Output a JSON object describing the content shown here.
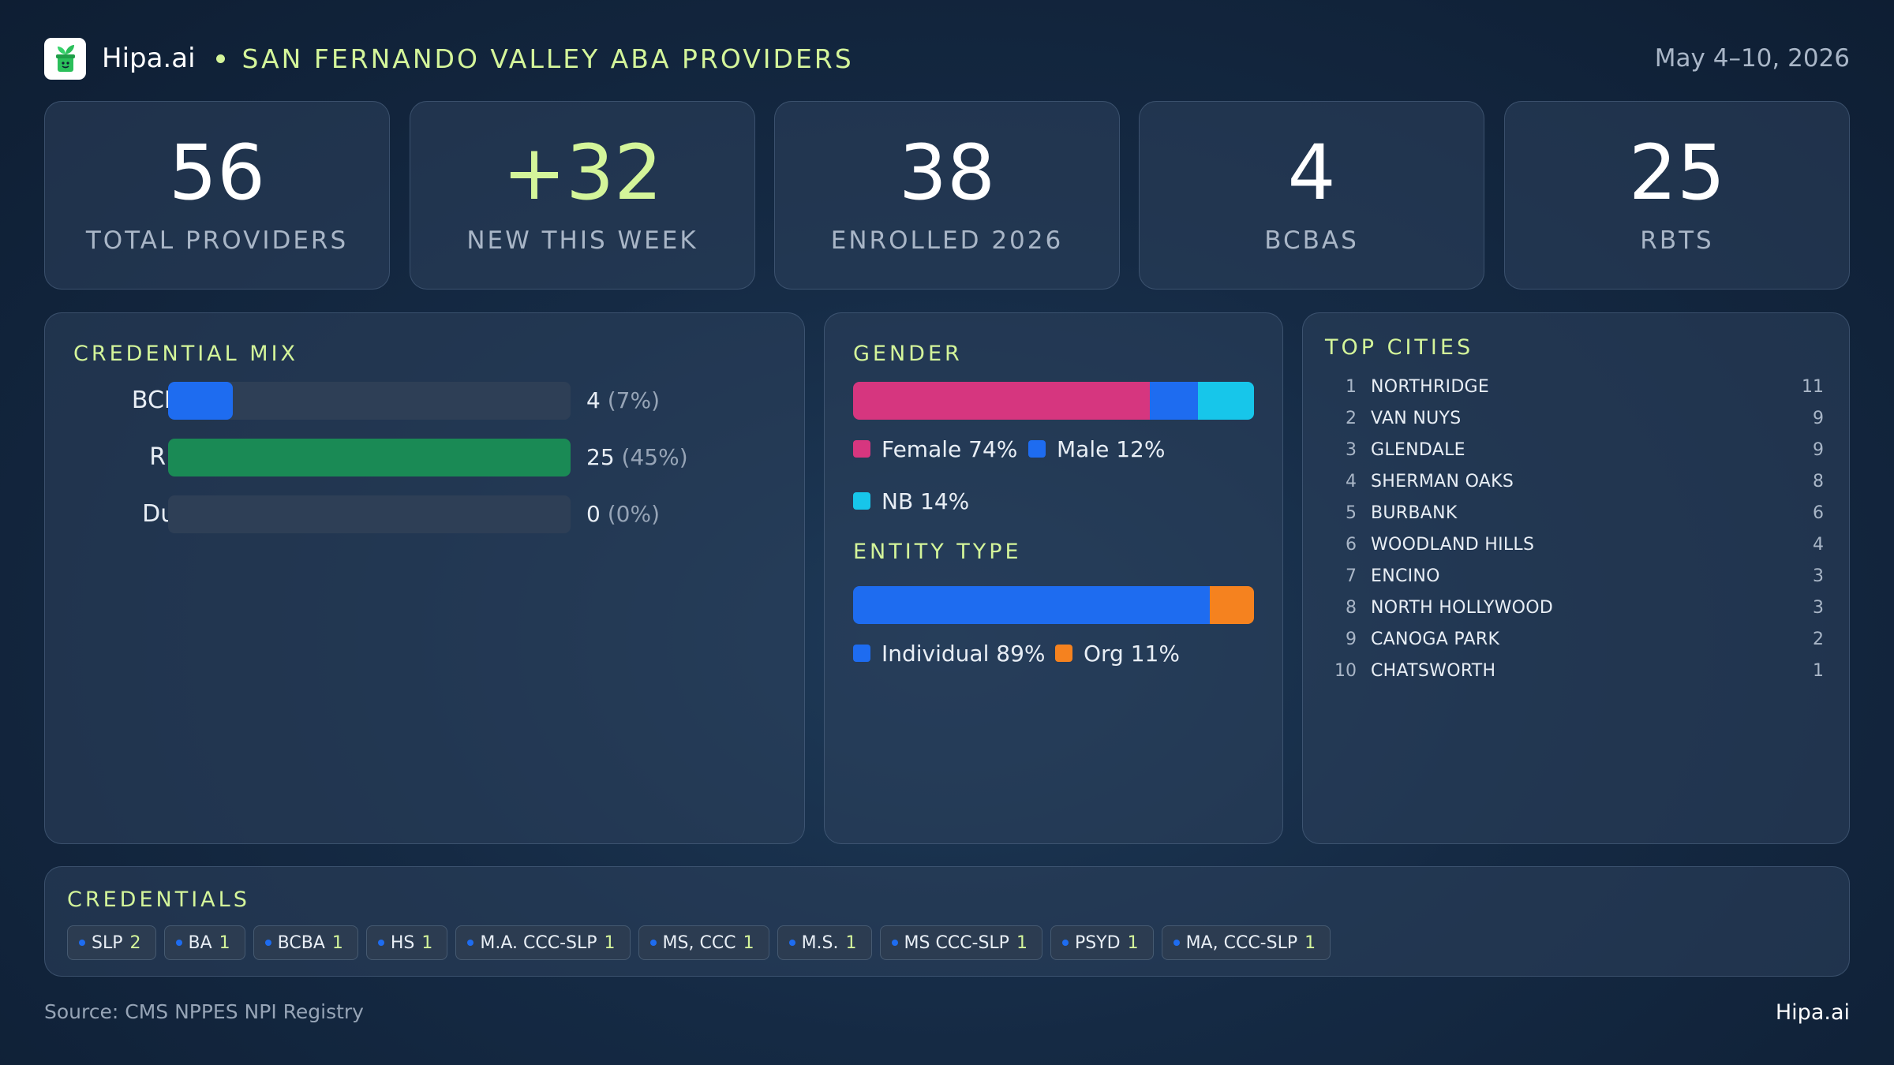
{
  "header": {
    "brand": "Hipa.ai",
    "title": "SAN FERNANDO VALLEY ABA PROVIDERS",
    "date_range": "May 4–10, 2026",
    "logo_icon": "sprout-pot-icon"
  },
  "stats": [
    {
      "value": "56",
      "label": "TOTAL PROVIDERS"
    },
    {
      "value": "+32",
      "label": "NEW THIS WEEK"
    },
    {
      "value": "38",
      "label": "ENROLLED 2026"
    },
    {
      "value": "4",
      "label": "BCBAS"
    },
    {
      "value": "25",
      "label": "RBTS"
    }
  ],
  "credential_mix": {
    "title": "CREDENTIAL MIX",
    "rows": [
      {
        "label": "BCBA",
        "count": "4",
        "pct": "(7%)",
        "fraction": 0.16,
        "color": "#1e6cf0"
      },
      {
        "label": "RBT",
        "count": "25",
        "pct": "(45%)",
        "fraction": 1.0,
        "color": "#1a8a55"
      },
      {
        "label": "Dual",
        "count": "0",
        "pct": "(0%)",
        "fraction": 0.0,
        "color": "#1e6cf0"
      }
    ]
  },
  "gender": {
    "title": "GENDER",
    "segments": [
      {
        "label": "Female 74%",
        "percent": 74,
        "color": "#d6367f"
      },
      {
        "label": "Male 12%",
        "percent": 12,
        "color": "#1e6cf0"
      },
      {
        "label": "NB 14%",
        "percent": 14,
        "color": "#17c6ea"
      }
    ]
  },
  "entity_type": {
    "title": "ENTITY TYPE",
    "segments": [
      {
        "label": "Individual 89%",
        "percent": 89,
        "color": "#1e6cf0"
      },
      {
        "label": "Org 11%",
        "percent": 11,
        "color": "#f5821f"
      }
    ]
  },
  "top_cities": {
    "title": "TOP CITIES",
    "items": [
      {
        "rank": "1",
        "name": "NORTHRIDGE",
        "count": "11"
      },
      {
        "rank": "2",
        "name": "VAN NUYS",
        "count": "9"
      },
      {
        "rank": "3",
        "name": "GLENDALE",
        "count": "9"
      },
      {
        "rank": "4",
        "name": "SHERMAN OAKS",
        "count": "8"
      },
      {
        "rank": "5",
        "name": "BURBANK",
        "count": "6"
      },
      {
        "rank": "6",
        "name": "WOODLAND HILLS",
        "count": "4"
      },
      {
        "rank": "7",
        "name": "ENCINO",
        "count": "3"
      },
      {
        "rank": "8",
        "name": "NORTH HOLLYWOOD",
        "count": "3"
      },
      {
        "rank": "9",
        "name": "CANOGA PARK",
        "count": "2"
      },
      {
        "rank": "10",
        "name": "CHATSWORTH",
        "count": "1"
      }
    ]
  },
  "credentials": {
    "title": "CREDENTIALS",
    "chips": [
      {
        "label": "SLP",
        "count": "2"
      },
      {
        "label": "BA",
        "count": "1"
      },
      {
        "label": "BCBA",
        "count": "1"
      },
      {
        "label": "HS",
        "count": "1"
      },
      {
        "label": "M.A. CCC-SLP",
        "count": "1"
      },
      {
        "label": "MS, CCC",
        "count": "1"
      },
      {
        "label": "M.S.",
        "count": "1"
      },
      {
        "label": "MS CCC-SLP",
        "count": "1"
      },
      {
        "label": "PSYD",
        "count": "1"
      },
      {
        "label": "MA, CCC-SLP",
        "count": "1"
      }
    ]
  },
  "footer": {
    "source": "Source: CMS NPPES NPI Registry",
    "brand": "Hipa.ai"
  }
}
